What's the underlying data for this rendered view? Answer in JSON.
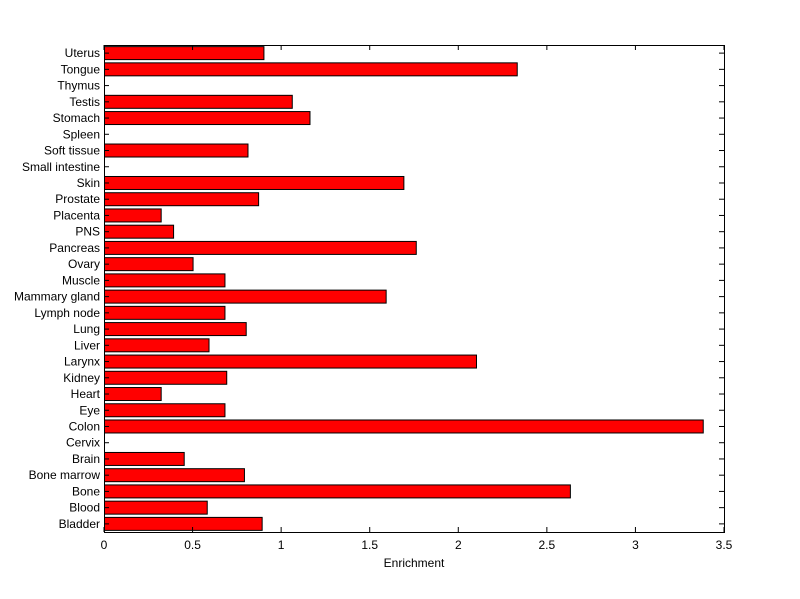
{
  "chart_data": {
    "type": "bar",
    "orientation": "horizontal",
    "title": "",
    "xlabel": "Enrichment",
    "ylabel": "",
    "xlim": [
      0,
      3.5
    ],
    "xticks": [
      "0",
      "0.5",
      "1",
      "1.5",
      "2",
      "2.5",
      "3",
      "3.5"
    ],
    "grid": false,
    "bar_color": "#ff0000",
    "edge_color": "#000000",
    "categories": [
      "Bladder",
      "Blood",
      "Bone",
      "Bone marrow",
      "Brain",
      "Cervix",
      "Colon",
      "Eye",
      "Heart",
      "Kidney",
      "Larynx",
      "Liver",
      "Lung",
      "Lymph node",
      "Mammary gland",
      "Muscle",
      "Ovary",
      "Pancreas",
      "PNS",
      "Placenta",
      "Prostate",
      "Skin",
      "Small intestine",
      "Soft tissue",
      "Spleen",
      "Stomach",
      "Testis",
      "Thymus",
      "Tongue",
      "Uterus"
    ],
    "values": [
      0.89,
      0.58,
      2.63,
      0.79,
      0.45,
      0,
      3.38,
      0.68,
      0.32,
      0.69,
      2.1,
      0.59,
      0.8,
      0.68,
      1.59,
      0.68,
      0.5,
      1.76,
      0.39,
      0.32,
      0.87,
      1.69,
      0,
      0.81,
      0,
      1.16,
      1.06,
      0,
      2.33,
      0.9
    ]
  }
}
